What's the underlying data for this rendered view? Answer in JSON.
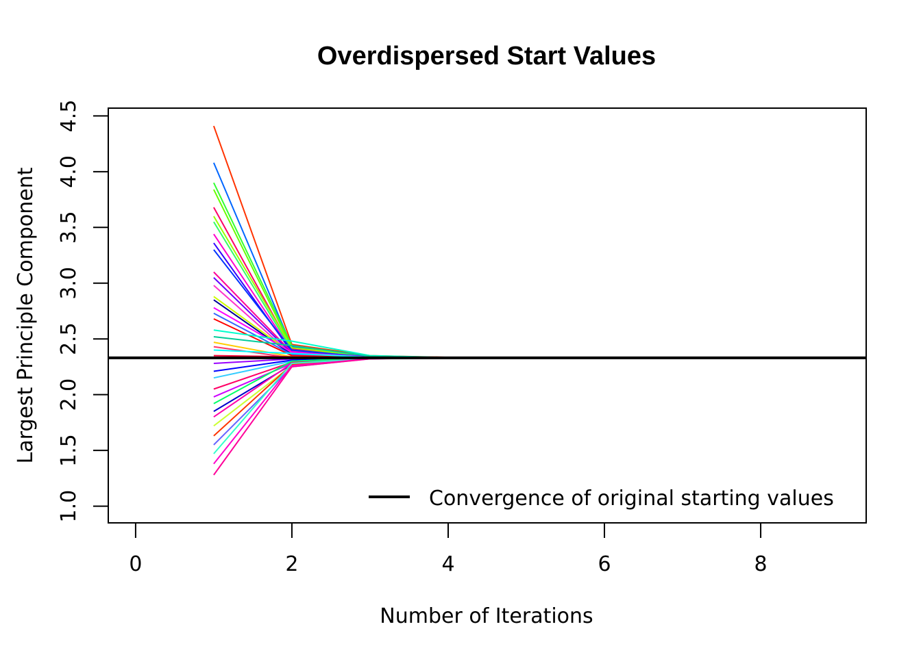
{
  "chart_data": {
    "type": "line",
    "title": "Overdispersed Start Values",
    "xlabel": "Number of Iterations",
    "ylabel": "Largest Principle Component",
    "xlim": [
      -0.35,
      9.35
    ],
    "ylim": [
      0.85,
      4.57
    ],
    "x_ticks": [
      0,
      2,
      4,
      6,
      8
    ],
    "x_tick_labels": [
      "0",
      "2",
      "4",
      "6",
      "8"
    ],
    "y_ticks": [
      1.0,
      1.5,
      2.0,
      2.5,
      3.0,
      3.5,
      4.0,
      4.5
    ],
    "y_tick_labels": [
      "1.0",
      "1.5",
      "2.0",
      "2.5",
      "3.0",
      "3.5",
      "4.0",
      "4.5"
    ],
    "grid": false,
    "legend": {
      "placement": "bottom-right",
      "entries": [
        {
          "label": "Convergence of original starting values",
          "color": "#000000"
        }
      ]
    },
    "reference_line": {
      "name": "Convergence of original starting values",
      "y": 2.33,
      "color": "#000000"
    },
    "x": [
      1,
      2,
      3,
      4,
      5
    ],
    "series": [
      {
        "color": "#ff3300",
        "values": [
          4.41,
          2.45,
          2.35,
          2.335,
          2.33
        ]
      },
      {
        "color": "#0066ff",
        "values": [
          4.08,
          2.43,
          2.345,
          2.333,
          2.33
        ]
      },
      {
        "color": "#33ff33",
        "values": [
          3.9,
          2.44,
          2.34,
          2.332,
          2.33
        ]
      },
      {
        "color": "#66ff00",
        "values": [
          3.84,
          2.42,
          2.34,
          2.332,
          2.33
        ]
      },
      {
        "color": "#ff0066",
        "values": [
          3.68,
          2.41,
          2.34,
          2.331,
          2.33
        ]
      },
      {
        "color": "#99ff00",
        "values": [
          3.6,
          2.42,
          2.345,
          2.332,
          2.33
        ]
      },
      {
        "color": "#33ff66",
        "values": [
          3.55,
          2.4,
          2.34,
          2.331,
          2.33
        ]
      },
      {
        "color": "#ff00cc",
        "values": [
          3.44,
          2.39,
          2.34,
          2.331,
          2.33
        ]
      },
      {
        "color": "#3300ff",
        "values": [
          3.36,
          2.38,
          2.34,
          2.331,
          2.33
        ]
      },
      {
        "color": "#0033ff",
        "values": [
          3.3,
          2.4,
          2.335,
          2.331,
          2.33
        ]
      },
      {
        "color": "#ff0099",
        "values": [
          3.1,
          2.38,
          2.335,
          2.331,
          2.33
        ]
      },
      {
        "color": "#6600ff",
        "values": [
          3.05,
          2.37,
          2.335,
          2.33,
          2.33
        ]
      },
      {
        "color": "#ff33cc",
        "values": [
          2.98,
          2.36,
          2.335,
          2.33,
          2.33
        ]
      },
      {
        "color": "#ccff00",
        "values": [
          2.88,
          2.37,
          2.335,
          2.33,
          2.33
        ]
      },
      {
        "color": "#000099",
        "values": [
          2.85,
          2.36,
          2.335,
          2.33,
          2.33
        ]
      },
      {
        "color": "#ff00ff",
        "values": [
          2.78,
          2.38,
          2.335,
          2.33,
          2.33
        ]
      },
      {
        "color": "#3366ff",
        "values": [
          2.73,
          2.36,
          2.334,
          2.33,
          2.33
        ]
      },
      {
        "color": "#ff0000",
        "values": [
          2.68,
          2.35,
          2.334,
          2.33,
          2.33
        ]
      },
      {
        "color": "#00ffcc",
        "values": [
          2.58,
          2.48,
          2.35,
          2.333,
          2.33
        ]
      },
      {
        "color": "#00cc99",
        "values": [
          2.52,
          2.44,
          2.345,
          2.332,
          2.33
        ]
      },
      {
        "color": "#ffcc00",
        "values": [
          2.47,
          2.34,
          2.333,
          2.33,
          2.33
        ]
      },
      {
        "color": "#ff3366",
        "values": [
          2.43,
          2.33,
          2.332,
          2.33,
          2.33
        ]
      },
      {
        "color": "#00ffff",
        "values": [
          2.4,
          2.37,
          2.335,
          2.33,
          2.33
        ]
      },
      {
        "color": "#ff0033",
        "values": [
          2.35,
          2.34,
          2.333,
          2.33,
          2.33
        ]
      },
      {
        "color": "#9900ff",
        "values": [
          2.28,
          2.32,
          2.331,
          2.33,
          2.33
        ]
      },
      {
        "color": "#0000ff",
        "values": [
          2.21,
          2.31,
          2.33,
          2.33,
          2.33
        ]
      },
      {
        "color": "#33ccff",
        "values": [
          2.15,
          2.3,
          2.328,
          2.33,
          2.33
        ]
      },
      {
        "color": "#ff0066",
        "values": [
          2.05,
          2.29,
          2.326,
          2.33,
          2.33
        ]
      },
      {
        "color": "#cc00ff",
        "values": [
          1.98,
          2.28,
          2.325,
          2.33,
          2.33
        ]
      },
      {
        "color": "#00ff66",
        "values": [
          1.92,
          2.3,
          2.326,
          2.33,
          2.33
        ]
      },
      {
        "color": "#0000cc",
        "values": [
          1.85,
          2.27,
          2.324,
          2.329,
          2.33
        ]
      },
      {
        "color": "#ff00aa",
        "values": [
          1.8,
          2.28,
          2.325,
          2.329,
          2.33
        ]
      },
      {
        "color": "#ccff33",
        "values": [
          1.72,
          2.26,
          2.323,
          2.329,
          2.33
        ]
      },
      {
        "color": "#ff3300",
        "values": [
          1.63,
          2.27,
          2.323,
          2.329,
          2.33
        ]
      },
      {
        "color": "#6666ff",
        "values": [
          1.55,
          2.25,
          2.322,
          2.329,
          2.33
        ]
      },
      {
        "color": "#33ffcc",
        "values": [
          1.47,
          2.28,
          2.324,
          2.329,
          2.33
        ]
      },
      {
        "color": "#ff00cc",
        "values": [
          1.38,
          2.26,
          2.322,
          2.329,
          2.33
        ]
      },
      {
        "color": "#ff0099",
        "values": [
          1.28,
          2.25,
          2.321,
          2.329,
          2.33
        ]
      }
    ]
  }
}
